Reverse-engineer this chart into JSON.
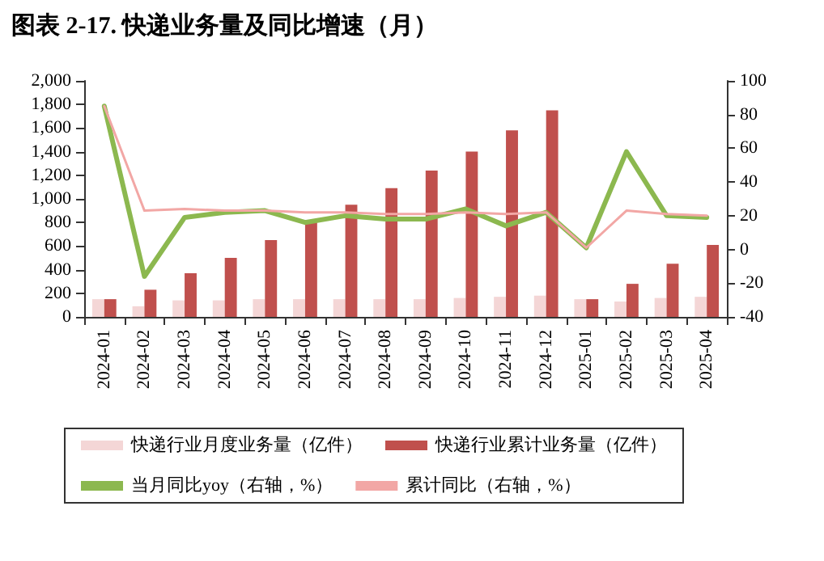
{
  "chart_data": {
    "type": "bar",
    "title": "图表 2-17. 快递业务量及同比增速（月）",
    "categories": [
      "2024-01",
      "2024-02",
      "2024-03",
      "2024-04",
      "2024-05",
      "2024-06",
      "2024-07",
      "2024-08",
      "2024-09",
      "2024-10",
      "2024-11",
      "2024-12",
      "2025-01",
      "2025-02",
      "2025-03",
      "2025-04"
    ],
    "series": [
      {
        "name": "快递行业月度业务量（亿件）",
        "color": "#f4d6d6",
        "values": [
          150,
          90,
          140,
          140,
          150,
          150,
          150,
          150,
          150,
          160,
          170,
          180,
          150,
          130,
          160,
          170
        ]
      },
      {
        "name": "快递行业累计业务量（亿件）",
        "color": "#c0504d",
        "values": [
          150,
          230,
          370,
          500,
          650,
          800,
          950,
          1090,
          1240,
          1400,
          1580,
          1750,
          150,
          280,
          450,
          610
        ]
      },
      {
        "name": "当月同比yoy（右轴，%）",
        "type": "line",
        "axis": "y2",
        "color": "#8cb84f",
        "values": [
          85,
          -16,
          19,
          22,
          23,
          16,
          20,
          18,
          18,
          24,
          14,
          22,
          1,
          58,
          20,
          19
        ]
      },
      {
        "name": "累计同比（右轴，%）",
        "type": "line",
        "axis": "y2",
        "color": "#f2a7a5",
        "values": [
          85,
          23,
          24,
          23,
          23,
          22,
          22,
          21,
          21,
          22,
          21,
          22,
          1,
          23,
          21,
          20
        ]
      }
    ],
    "ylim": [
      0,
      2000
    ],
    "yticks": [
      {
        "value": 0,
        "label": "0"
      },
      {
        "value": 200,
        "label": "200"
      },
      {
        "value": 400,
        "label": "400"
      },
      {
        "value": 600,
        "label": "600"
      },
      {
        "value": 800,
        "label": "800"
      },
      {
        "value": 1000,
        "label": "1,000"
      },
      {
        "value": 1200,
        "label": "1,200"
      },
      {
        "value": 1400,
        "label": "1,400"
      },
      {
        "value": 1600,
        "label": "1,600"
      },
      {
        "value": 1800,
        "label": "1,800"
      },
      {
        "value": 2000,
        "label": "2,000"
      }
    ],
    "y2lim": [
      -40,
      100
    ],
    "y2ticks": [
      -40,
      -20,
      0,
      20,
      40,
      60,
      80,
      100
    ],
    "grid": false,
    "legend": "bottom"
  }
}
